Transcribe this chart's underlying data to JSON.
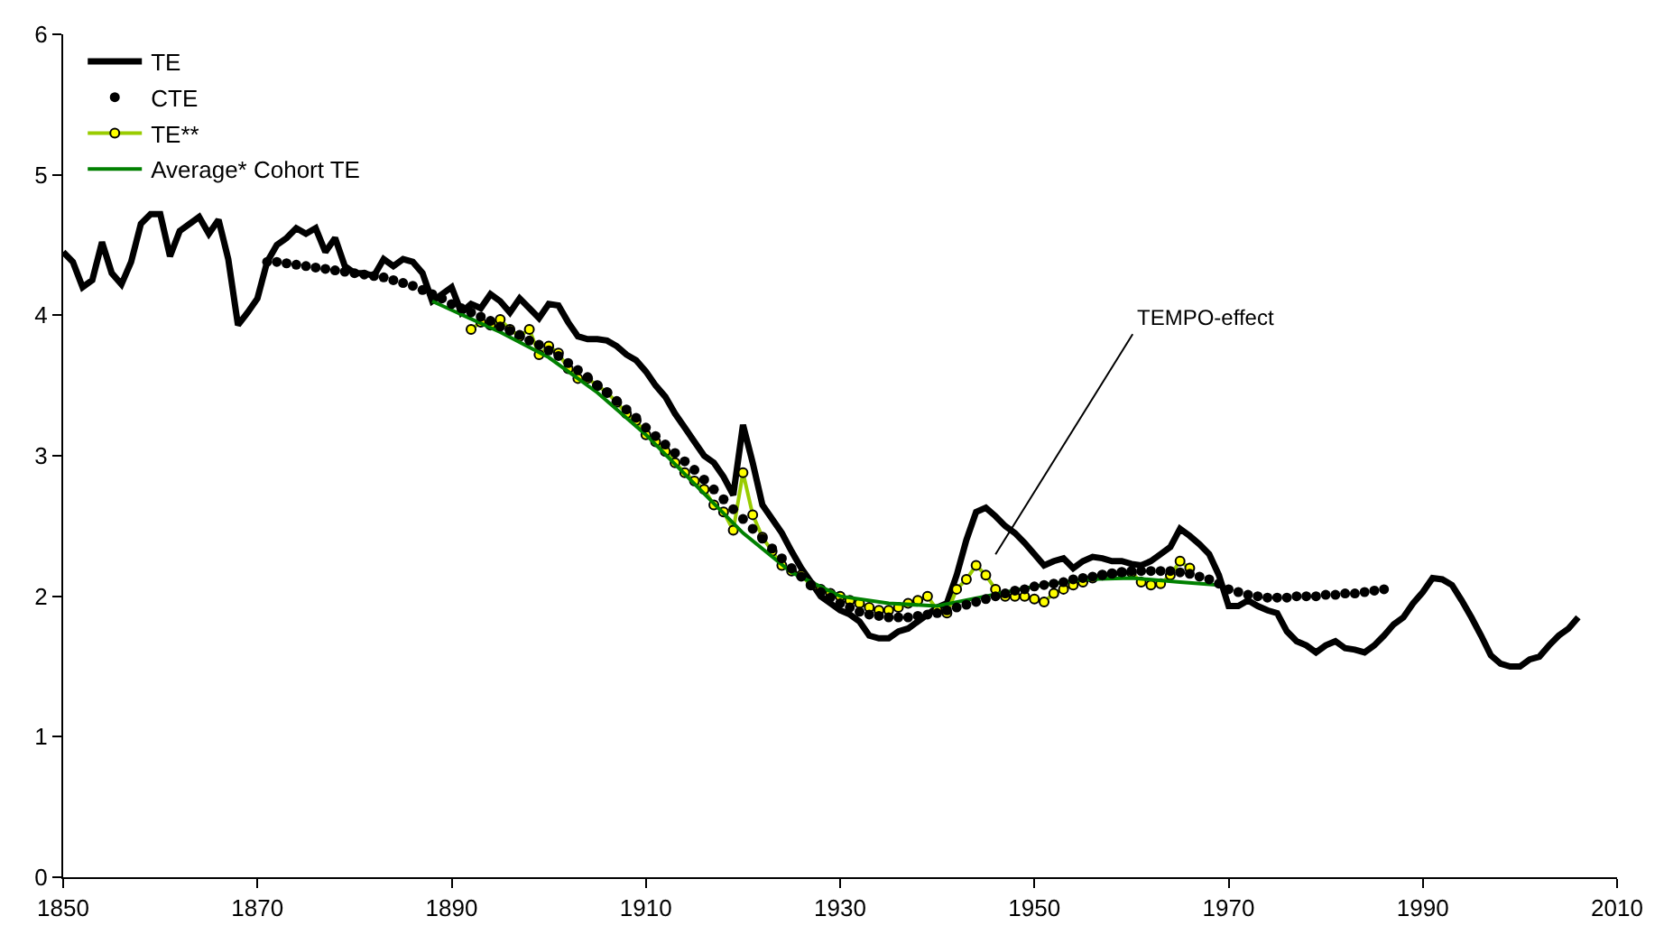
{
  "chart_data": {
    "type": "line",
    "xlim": [
      1850,
      2010
    ],
    "xticks": [
      1850,
      1870,
      1890,
      1910,
      1930,
      1950,
      1970,
      1990,
      2010
    ],
    "ylim": [
      0,
      6
    ],
    "yticks": [
      0,
      1,
      2,
      3,
      4,
      5,
      6
    ],
    "grid": false,
    "legend": "top left",
    "annotations": [
      "TEMPO-effect"
    ],
    "series": [
      {
        "name": "TE",
        "type": "line",
        "color": "#000000",
        "marker": "none",
        "x": [
          1850,
          1851,
          1852,
          1853,
          1854,
          1855,
          1856,
          1857,
          1858,
          1859,
          1860,
          1861,
          1862,
          1863,
          1864,
          1865,
          1866,
          1867,
          1868,
          1869,
          1870,
          1871,
          1872,
          1873,
          1874,
          1875,
          1876,
          1877,
          1878,
          1879,
          1880,
          1881,
          1882,
          1883,
          1884,
          1885,
          1886,
          1887,
          1888,
          1889,
          1890,
          1891,
          1892,
          1893,
          1894,
          1895,
          1896,
          1897,
          1898,
          1899,
          1900,
          1901,
          1902,
          1903,
          1904,
          1905,
          1906,
          1907,
          1908,
          1909,
          1910,
          1911,
          1912,
          1913,
          1914,
          1915,
          1916,
          1917,
          1918,
          1919,
          1920,
          1921,
          1922,
          1923,
          1924,
          1925,
          1926,
          1927,
          1928,
          1929,
          1930,
          1931,
          1932,
          1933,
          1934,
          1935,
          1936,
          1937,
          1938,
          1939,
          1940,
          1941,
          1942,
          1943,
          1944,
          1945,
          1946,
          1947,
          1948,
          1949,
          1950,
          1951,
          1952,
          1953,
          1954,
          1955,
          1956,
          1957,
          1958,
          1959,
          1960,
          1961,
          1962,
          1963,
          1964,
          1965,
          1966,
          1967,
          1968,
          1969,
          1970,
          1971,
          1972,
          1973,
          1974,
          1975,
          1976,
          1977,
          1978,
          1979,
          1980,
          1981,
          1982,
          1983,
          1984,
          1985,
          1986,
          1987,
          1988,
          1989,
          1990,
          1991,
          1992,
          1993,
          1994,
          1995,
          1996,
          1997,
          1998,
          1999,
          2000,
          2001,
          2002,
          2003,
          2004,
          2005,
          2006
        ],
        "values": [
          4.45,
          4.38,
          4.2,
          4.25,
          4.52,
          4.3,
          4.22,
          4.38,
          4.65,
          4.72,
          4.72,
          4.42,
          4.6,
          4.65,
          4.7,
          4.58,
          4.68,
          4.4,
          3.93,
          4.02,
          4.12,
          4.38,
          4.5,
          4.55,
          4.62,
          4.58,
          4.62,
          4.45,
          4.55,
          4.35,
          4.3,
          4.3,
          4.28,
          4.4,
          4.35,
          4.4,
          4.38,
          4.3,
          4.1,
          4.15,
          4.2,
          4.02,
          4.08,
          4.05,
          4.15,
          4.1,
          4.02,
          4.12,
          4.05,
          3.98,
          4.08,
          4.07,
          3.95,
          3.85,
          3.83,
          3.83,
          3.82,
          3.78,
          3.72,
          3.68,
          3.6,
          3.5,
          3.42,
          3.3,
          3.2,
          3.1,
          3.0,
          2.95,
          2.85,
          2.72,
          3.22,
          2.95,
          2.65,
          2.55,
          2.45,
          2.32,
          2.2,
          2.1,
          2.0,
          1.95,
          1.9,
          1.87,
          1.82,
          1.72,
          1.7,
          1.7,
          1.75,
          1.77,
          1.82,
          1.87,
          1.92,
          1.95,
          2.15,
          2.4,
          2.6,
          2.63,
          2.57,
          2.5,
          2.45,
          2.38,
          2.3,
          2.22,
          2.25,
          2.27,
          2.2,
          2.25,
          2.28,
          2.27,
          2.25,
          2.25,
          2.23,
          2.22,
          2.25,
          2.3,
          2.35,
          2.48,
          2.43,
          2.37,
          2.3,
          2.15,
          1.93,
          1.93,
          1.97,
          1.93,
          1.9,
          1.88,
          1.75,
          1.68,
          1.65,
          1.6,
          1.65,
          1.68,
          1.63,
          1.62,
          1.6,
          1.65,
          1.72,
          1.8,
          1.85,
          1.95,
          2.03,
          2.13,
          2.12,
          2.08,
          1.97,
          1.85,
          1.72,
          1.58,
          1.52,
          1.5,
          1.5,
          1.55,
          1.57,
          1.65,
          1.72,
          1.77,
          1.85
        ]
      },
      {
        "name": "CTE",
        "type": "scatter",
        "color": "#000000",
        "marker": "circle",
        "x": [
          1871,
          1872,
          1873,
          1874,
          1875,
          1876,
          1877,
          1878,
          1879,
          1880,
          1881,
          1882,
          1883,
          1884,
          1885,
          1886,
          1887,
          1888,
          1889,
          1890,
          1891,
          1892,
          1893,
          1894,
          1895,
          1896,
          1897,
          1898,
          1899,
          1900,
          1901,
          1902,
          1903,
          1904,
          1905,
          1906,
          1907,
          1908,
          1909,
          1910,
          1911,
          1912,
          1913,
          1914,
          1915,
          1916,
          1917,
          1918,
          1919,
          1920,
          1921,
          1922,
          1923,
          1924,
          1925,
          1926,
          1927,
          1928,
          1929,
          1930,
          1931,
          1932,
          1933,
          1934,
          1935,
          1936,
          1937,
          1938,
          1939,
          1940,
          1941,
          1942,
          1943,
          1944,
          1945,
          1946,
          1947,
          1948,
          1949,
          1950,
          1951,
          1952,
          1953,
          1954,
          1955,
          1956,
          1957,
          1958,
          1959,
          1960,
          1961,
          1962,
          1963,
          1964,
          1965,
          1966,
          1967,
          1968,
          1969,
          1970,
          1971,
          1972,
          1973,
          1974,
          1975,
          1976,
          1977,
          1978,
          1979,
          1980,
          1981,
          1982,
          1983,
          1984,
          1985,
          1986
        ],
        "values": [
          4.38,
          4.38,
          4.37,
          4.36,
          4.35,
          4.34,
          4.33,
          4.32,
          4.31,
          4.3,
          4.29,
          4.28,
          4.27,
          4.25,
          4.23,
          4.21,
          4.18,
          4.15,
          4.12,
          4.08,
          4.05,
          4.02,
          3.99,
          3.96,
          3.92,
          3.89,
          3.86,
          3.82,
          3.79,
          3.75,
          3.71,
          3.66,
          3.61,
          3.56,
          3.5,
          3.45,
          3.39,
          3.33,
          3.27,
          3.2,
          3.14,
          3.08,
          3.02,
          2.96,
          2.9,
          2.83,
          2.76,
          2.69,
          2.62,
          2.55,
          2.48,
          2.41,
          2.34,
          2.27,
          2.2,
          2.14,
          2.08,
          2.03,
          1.99,
          1.95,
          1.92,
          1.89,
          1.87,
          1.86,
          1.85,
          1.85,
          1.85,
          1.86,
          1.87,
          1.88,
          1.9,
          1.92,
          1.94,
          1.96,
          1.98,
          2.0,
          2.02,
          2.04,
          2.05,
          2.07,
          2.08,
          2.09,
          2.1,
          2.12,
          2.13,
          2.14,
          2.15,
          2.16,
          2.17,
          2.18,
          2.18,
          2.18,
          2.18,
          2.18,
          2.17,
          2.16,
          2.14,
          2.12,
          2.09,
          2.05,
          2.03,
          2.01,
          2.0,
          1.99,
          1.99,
          1.99,
          2.0,
          2.0,
          2.0,
          2.01,
          2.01,
          2.02,
          2.02,
          2.03,
          2.04,
          2.05
        ]
      },
      {
        "name": "TE**",
        "type": "line",
        "color": "#99cc00",
        "marker": "circle",
        "x": [
          1892,
          1893,
          1894,
          1895,
          1896,
          1897,
          1898,
          1899,
          1900,
          1901,
          1902,
          1903,
          1904,
          1905,
          1906,
          1907,
          1908,
          1909,
          1910,
          1911,
          1912,
          1913,
          1914,
          1915,
          1916,
          1917,
          1918,
          1919,
          1920,
          1921,
          1922,
          1923,
          1924,
          1925,
          1926,
          1927,
          1928,
          1929,
          1930,
          1931,
          1932,
          1933,
          1934,
          1935,
          1936,
          1937,
          1938,
          1939,
          1940,
          1941,
          1942,
          1943,
          1944,
          1945,
          1946,
          1947,
          1948,
          1949,
          1950,
          1951,
          1952,
          1953,
          1954,
          1955,
          1956,
          1957,
          1958,
          1959,
          1960,
          1961,
          1962,
          1963,
          1964,
          1965,
          1966
        ],
        "values": [
          3.9,
          3.95,
          3.93,
          3.97,
          3.9,
          3.85,
          3.9,
          3.72,
          3.78,
          3.73,
          3.62,
          3.55,
          3.55,
          3.5,
          3.45,
          3.38,
          3.3,
          3.25,
          3.15,
          3.1,
          3.03,
          2.95,
          2.88,
          2.82,
          2.76,
          2.65,
          2.6,
          2.47,
          2.88,
          2.58,
          2.42,
          2.32,
          2.22,
          2.18,
          2.15,
          2.08,
          2.05,
          2.02,
          2.0,
          1.97,
          1.95,
          1.92,
          1.9,
          1.9,
          1.92,
          1.95,
          1.97,
          2.0,
          1.9,
          1.88,
          2.05,
          2.12,
          2.22,
          2.15,
          2.05,
          2.0,
          2.0,
          2.0,
          1.98,
          1.96,
          2.02,
          2.05,
          2.08,
          2.1,
          2.13,
          2.15,
          2.16,
          2.17,
          2.17,
          2.1,
          2.08,
          2.09,
          2.15,
          2.25,
          2.2
        ]
      },
      {
        "name": "Average* Cohort TE",
        "type": "line",
        "color": "#008000",
        "marker": "none",
        "x": [
          1888,
          1895,
          1900,
          1905,
          1910,
          1915,
          1920,
          1925,
          1930,
          1935,
          1940,
          1945,
          1950,
          1955,
          1960,
          1965,
          1969
        ],
        "values": [
          4.1,
          3.88,
          3.7,
          3.45,
          3.15,
          2.8,
          2.45,
          2.17,
          2.0,
          1.95,
          1.93,
          2.0,
          2.07,
          2.12,
          2.13,
          2.1,
          2.08
        ]
      }
    ]
  }
}
